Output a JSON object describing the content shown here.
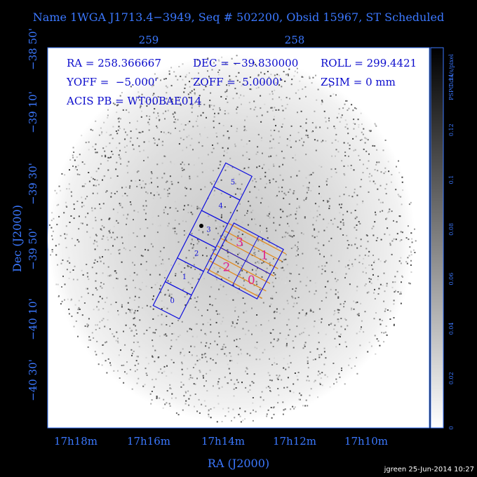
{
  "title": "Name 1WGA J1713.4−3949, Seq # 502200, Obsid 15967, ST Scheduled",
  "top_axis_labels": [
    "259",
    "258"
  ],
  "left_axis_labels": [
    "−38 50'",
    "−39 10'",
    "−39 30'",
    "−39 50'",
    "−40 10'",
    "−40 30'"
  ],
  "bottom_axis_labels": [
    "17h18m",
    "17h16m",
    "17h14m",
    "17h12m",
    "17h10m"
  ],
  "x_axis_title": "RA (J2000)",
  "y_axis_title": "Dec (J2000)",
  "info_lines": [
    "RA = 258.366667",
    "DEC = −39.830000",
    "ROLL = 299.4421",
    "YOFF =  −5.000'",
    "ZOFF =  5.0000'",
    "ZSIM = 0 mm",
    "ACIS PB = WT00BAE014"
  ],
  "colorbar": {
    "title": "PSPC cts/s/pixel",
    "ticks": [
      "0",
      "0.02",
      "0.04",
      "0.06",
      "0.08",
      "0.1",
      "0.12",
      "0.14"
    ]
  },
  "strip_chip_labels": [
    "0",
    "1",
    "2",
    "3",
    "4",
    "5"
  ],
  "array_chip_labels": [
    "3",
    "1",
    "2",
    "0"
  ],
  "footer": "jgreen 25-Jun-2014 10:27"
}
